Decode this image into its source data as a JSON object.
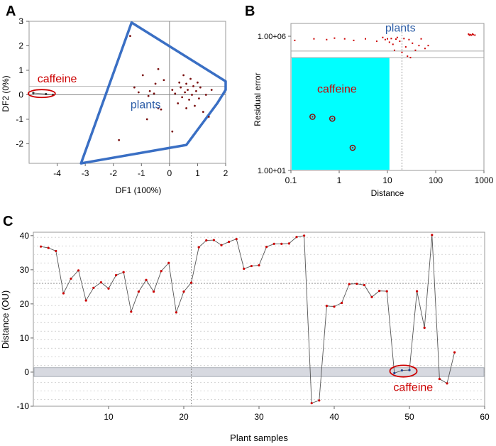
{
  "colors": {
    "point": "#cc0000",
    "polygon": "#3a6fc4",
    "label_red": "#cc0000",
    "label_blue": "#2f5fa8",
    "cyan": "#00ffff",
    "line": "#555555",
    "grid": "#cccccc",
    "band": "#d7d9e0"
  },
  "chart_data": [
    {
      "id": "A",
      "type": "scatter",
      "panel_label": "A",
      "xlabel": "DF1 (100%)",
      "ylabel": "DF2 (0%)",
      "xlim": [
        -5,
        2
      ],
      "ylim": [
        -2.8,
        3
      ],
      "xticks": [
        -4,
        -3,
        -2,
        -1,
        0,
        1,
        2
      ],
      "yticks": [
        -2,
        -1,
        0,
        1,
        2,
        3
      ],
      "annotations": [
        {
          "text": "caffeine",
          "x": -4.0,
          "y": 0.5,
          "color": "label_red"
        },
        {
          "text": "plants",
          "x": -0.85,
          "y": -0.55,
          "color": "label_blue"
        }
      ],
      "polygon_label": "plants",
      "polygon": [
        [
          -1.35,
          2.95
        ],
        [
          2.0,
          0.55
        ],
        [
          2.0,
          0.2
        ],
        [
          1.7,
          -0.35
        ],
        [
          0.6,
          -2.05
        ],
        [
          -3.15,
          -2.8
        ],
        [
          -1.35,
          2.95
        ]
      ],
      "caffeine_ellipse": {
        "cx": -4.55,
        "cy": 0.05,
        "rx": 0.48,
        "ry": 0.16
      },
      "caffeine": [
        [
          -4.85,
          0.07
        ],
        [
          -4.4,
          0.03
        ],
        [
          -4.15,
          0.0
        ]
      ],
      "points": [
        [
          -1.4,
          2.4
        ],
        [
          -1.25,
          0.3
        ],
        [
          -1.1,
          0.1
        ],
        [
          -0.8,
          -1.0
        ],
        [
          -0.75,
          -0.05
        ],
        [
          -0.7,
          0.15
        ],
        [
          -0.5,
          0.45
        ],
        [
          -0.4,
          1.05
        ],
        [
          -0.4,
          -0.55
        ],
        [
          -0.3,
          -0.6
        ],
        [
          -0.2,
          0.6
        ],
        [
          0.1,
          0.2
        ],
        [
          0.1,
          -1.5
        ],
        [
          0.2,
          0.05
        ],
        [
          0.3,
          -0.35
        ],
        [
          0.35,
          0.5
        ],
        [
          0.4,
          0.3
        ],
        [
          0.45,
          -0.1
        ],
        [
          0.5,
          0.8
        ],
        [
          0.55,
          0.1
        ],
        [
          0.6,
          -0.55
        ],
        [
          0.6,
          0.45
        ],
        [
          0.65,
          0.2
        ],
        [
          0.7,
          -0.2
        ],
        [
          0.75,
          0.65
        ],
        [
          0.8,
          0.0
        ],
        [
          0.85,
          0.35
        ],
        [
          0.9,
          -0.45
        ],
        [
          0.95,
          0.15
        ],
        [
          1.0,
          0.5
        ],
        [
          1.05,
          -0.15
        ],
        [
          1.1,
          0.3
        ],
        [
          1.2,
          -0.7
        ],
        [
          1.3,
          0.0
        ],
        [
          1.4,
          -0.9
        ],
        [
          1.5,
          0.2
        ],
        [
          -1.8,
          -1.85
        ],
        [
          -0.95,
          0.8
        ],
        [
          -0.55,
          0.05
        ]
      ]
    },
    {
      "id": "B",
      "type": "scatter",
      "panel_label": "B",
      "xlabel": "Distance",
      "ylabel": "Residual error",
      "xscale": "log",
      "yscale": "log",
      "xlim": [
        0.1,
        1000
      ],
      "ylim": [
        10,
        3000000
      ],
      "xtick_labels": [
        "0.1",
        "1",
        "10",
        "100",
        "1000"
      ],
      "ytick_labels": [
        "1.00+01",
        "1.00+06"
      ],
      "cyan_region": {
        "x": [
          0.1,
          11
        ],
        "y": [
          10,
          160000
        ]
      },
      "annotations": [
        {
          "text": "plants",
          "x": 6,
          "y": 1500000,
          "color": "label_blue"
        },
        {
          "text": "caffeine",
          "x": 0.9,
          "y": 8000,
          "color": "label_red"
        }
      ],
      "caffeine": [
        [
          0.28,
          1000
        ],
        [
          0.72,
          850
        ],
        [
          1.9,
          70
        ]
      ],
      "points": [
        [
          0.12,
          700000
        ],
        [
          0.3,
          800000
        ],
        [
          0.55,
          750000
        ],
        [
          0.8,
          850000
        ],
        [
          1.3,
          800000
        ],
        [
          2.0,
          700000
        ],
        [
          3.5,
          800000
        ],
        [
          6.0,
          650000
        ],
        [
          8.0,
          900000
        ],
        [
          9.0,
          750000
        ],
        [
          10.0,
          800000
        ],
        [
          11.0,
          600000
        ],
        [
          12.0,
          820000
        ],
        [
          13.0,
          500000
        ],
        [
          14.0,
          300000
        ],
        [
          15.0,
          780000
        ],
        [
          16.0,
          900000
        ],
        [
          18.0,
          650000
        ],
        [
          20.0,
          250000
        ],
        [
          22.0,
          820000
        ],
        [
          24.0,
          400000
        ],
        [
          26.0,
          180000
        ],
        [
          28.0,
          750000
        ],
        [
          30.0,
          160000
        ],
        [
          33.0,
          550000
        ],
        [
          38.0,
          300000
        ],
        [
          45.0,
          450000
        ],
        [
          50.0,
          800000
        ],
        [
          60.0,
          350000
        ],
        [
          70.0,
          450000
        ],
        [
          480.0,
          1200000
        ],
        [
          500.0,
          1100000
        ],
        [
          520.0,
          1150000
        ],
        [
          550.0,
          1100000
        ],
        [
          580.0,
          1200000
        ],
        [
          600.0,
          1150000
        ],
        [
          650.0,
          1100000
        ]
      ]
    },
    {
      "id": "C",
      "type": "line",
      "panel_label": "C",
      "xlabel": "Plant samples",
      "ylabel": "Distance (OU)",
      "xlim": [
        0,
        60
      ],
      "ylim": [
        -10,
        41
      ],
      "xticks": [
        10,
        20,
        30,
        40,
        50,
        60
      ],
      "yticks": [
        -10,
        0,
        10,
        20,
        30,
        40
      ],
      "threshold_y": 26,
      "vline_x": 21,
      "band": [
        -1.3,
        1.3
      ],
      "annotations": [
        {
          "text": "caffeine",
          "x": 50.5,
          "y": -2.2,
          "color": "label_red"
        }
      ],
      "caffeine_ellipse": {
        "cx": 49.2,
        "cy": 0.3,
        "rx": 1.8,
        "ry": 1.7
      },
      "caffeine_indices": [
        48,
        49,
        50
      ],
      "x": [
        1,
        2,
        3,
        4,
        5,
        6,
        7,
        8,
        9,
        10,
        11,
        12,
        13,
        14,
        15,
        16,
        17,
        18,
        19,
        20,
        21,
        22,
        23,
        24,
        25,
        26,
        27,
        28,
        29,
        30,
        31,
        32,
        33,
        34,
        35,
        36,
        37,
        38,
        39,
        40,
        41,
        42,
        43,
        44,
        45,
        46,
        47,
        48,
        49,
        50,
        51,
        52,
        53,
        54,
        55,
        56
      ],
      "values": [
        36.8,
        36.4,
        35.5,
        23.1,
        27.4,
        29.8,
        21.0,
        24.7,
        26.3,
        24.5,
        28.4,
        29.3,
        17.7,
        23.6,
        27.0,
        23.6,
        29.6,
        32.0,
        17.5,
        23.6,
        26.2,
        36.6,
        38.6,
        38.7,
        37.2,
        38.2,
        39.0,
        30.3,
        31.1,
        31.3,
        36.7,
        37.6,
        37.6,
        37.7,
        39.6,
        40.0,
        -9.1,
        -8.3,
        19.4,
        19.2,
        20.3,
        25.8,
        25.9,
        25.5,
        22.0,
        23.8,
        23.7,
        -0.3,
        0.5,
        0.6,
        23.7,
        13.0,
        40.2,
        -2.0,
        -3.3,
        5.8
      ]
    }
  ]
}
